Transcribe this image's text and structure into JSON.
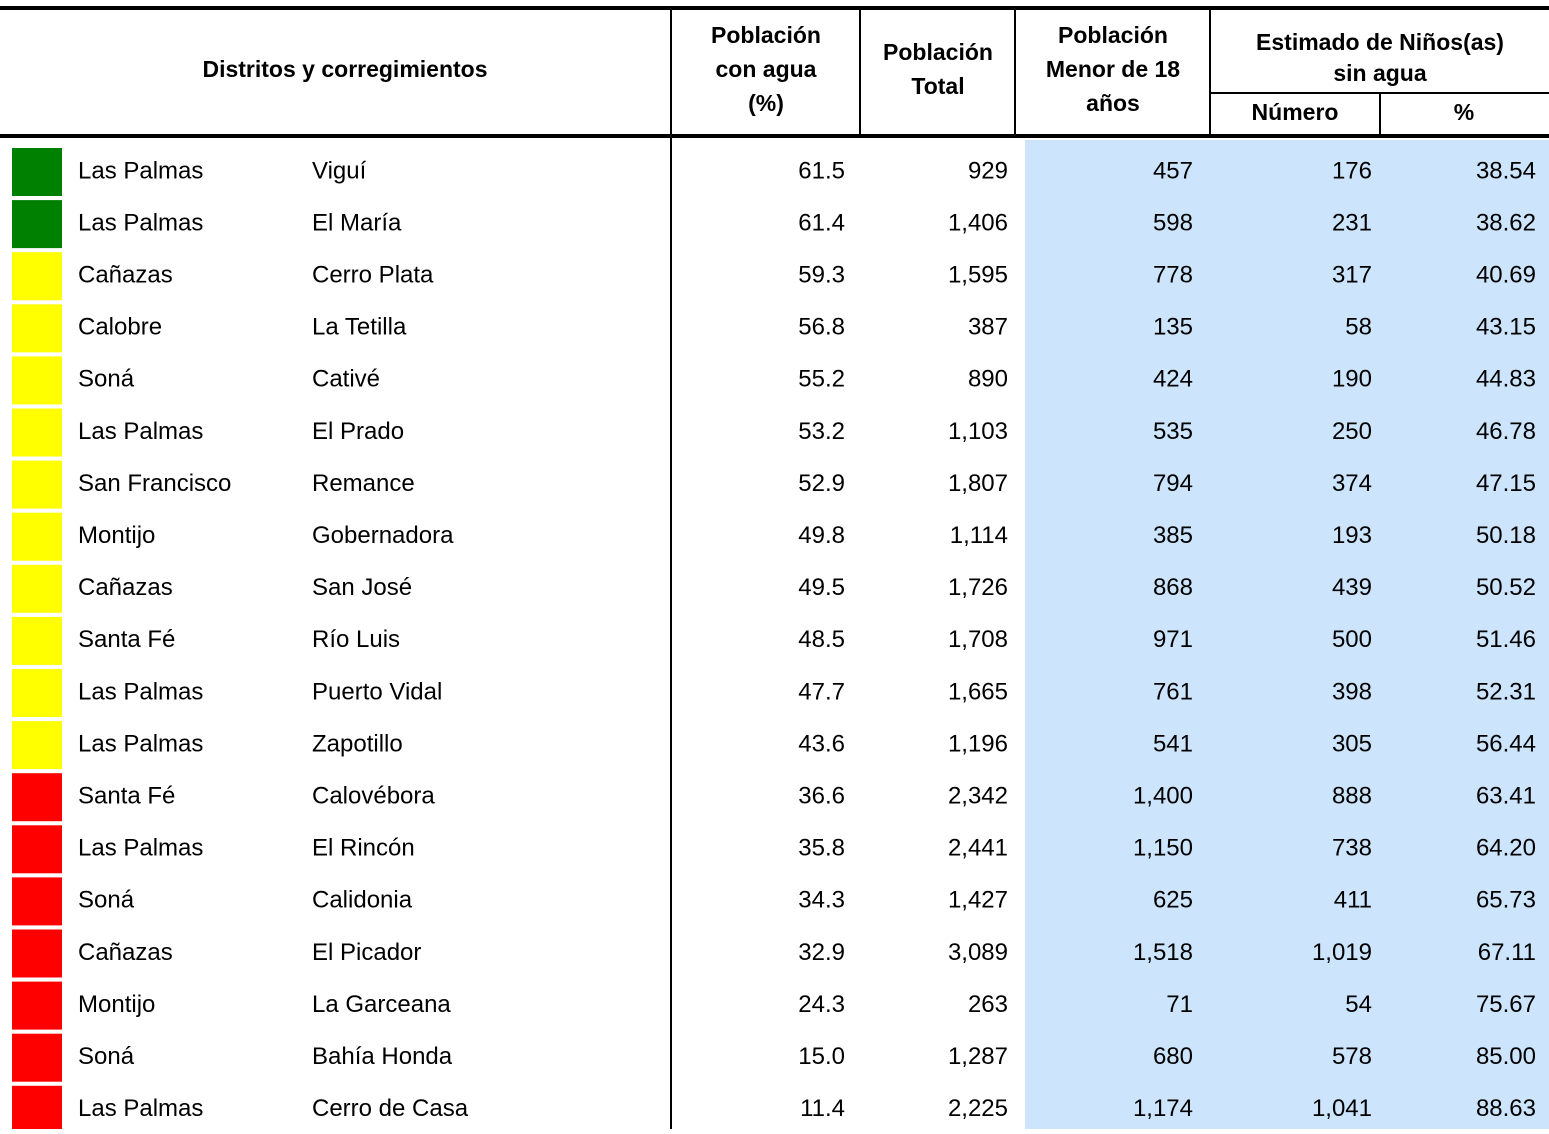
{
  "header": {
    "districts": "Distritos y corregimientos",
    "water_pct": [
      "Población",
      "con agua",
      "(%)"
    ],
    "total": [
      "Población",
      "Total"
    ],
    "under18": [
      "Población",
      "Menor de 18",
      "años"
    ],
    "estimate": [
      "Estimado de Niños(as)",
      "sin agua"
    ],
    "number": "Número",
    "pct": "%"
  },
  "table": {
    "rows": [
      {
        "color": "#008000",
        "cells": [
          "Las Palmas",
          "Viguí",
          "61.5",
          "929",
          "457",
          "176",
          "38.54"
        ]
      },
      {
        "color": "#008000",
        "cells": [
          "Las Palmas",
          "El María",
          "61.4",
          "1,406",
          "598",
          "231",
          "38.62"
        ]
      },
      {
        "color": "#ffff00",
        "cells": [
          "Cañazas",
          "Cerro Plata",
          "59.3",
          "1,595",
          "778",
          "317",
          "40.69"
        ]
      },
      {
        "color": "#ffff00",
        "cells": [
          "Calobre",
          "La Tetilla",
          "56.8",
          "387",
          "135",
          "58",
          "43.15"
        ]
      },
      {
        "color": "#ffff00",
        "cells": [
          "Soná",
          "Cativé",
          "55.2",
          "890",
          "424",
          "190",
          "44.83"
        ]
      },
      {
        "color": "#ffff00",
        "cells": [
          "Las Palmas",
          "El Prado",
          "53.2",
          "1,103",
          "535",
          "250",
          "46.78"
        ]
      },
      {
        "color": "#ffff00",
        "cells": [
          "San Francisco",
          "Remance",
          "52.9",
          "1,807",
          "794",
          "374",
          "47.15"
        ]
      },
      {
        "color": "#ffff00",
        "cells": [
          "Montijo",
          "Gobernadora",
          "49.8",
          "1,114",
          "385",
          "193",
          "50.18"
        ]
      },
      {
        "color": "#ffff00",
        "cells": [
          "Cañazas",
          "San José",
          "49.5",
          "1,726",
          "868",
          "439",
          "50.52"
        ]
      },
      {
        "color": "#ffff00",
        "cells": [
          "Santa Fé",
          "Río Luis",
          "48.5",
          "1,708",
          "971",
          "500",
          "51.46"
        ]
      },
      {
        "color": "#ffff00",
        "cells": [
          "Las Palmas",
          "Puerto Vidal",
          "47.7",
          "1,665",
          "761",
          "398",
          "52.31"
        ]
      },
      {
        "color": "#ffff00",
        "cells": [
          "Las Palmas",
          "Zapotillo",
          "43.6",
          "1,196",
          "541",
          "305",
          "56.44"
        ]
      },
      {
        "color": "#ff0000",
        "cells": [
          "Santa Fé",
          "Calovébora",
          "36.6",
          "2,342",
          "1,400",
          "888",
          "63.41"
        ]
      },
      {
        "color": "#ff0000",
        "cells": [
          "Las Palmas",
          "El Rincón",
          "35.8",
          "2,441",
          "1,150",
          "738",
          "64.20"
        ]
      },
      {
        "color": "#ff0000",
        "cells": [
          "Soná",
          "Calidonia",
          "34.3",
          "1,427",
          "625",
          "411",
          "65.73"
        ]
      },
      {
        "color": "#ff0000",
        "cells": [
          "Cañazas",
          "El Picador",
          "32.9",
          "3,089",
          "1,518",
          "1,019",
          "67.11"
        ]
      },
      {
        "color": "#ff0000",
        "cells": [
          "Montijo",
          "La Garceana",
          "24.3",
          "263",
          "71",
          "54",
          "75.67"
        ]
      },
      {
        "color": "#ff0000",
        "cells": [
          "Soná",
          "Bahía Honda",
          "15.0",
          "1,287",
          "680",
          "578",
          "85.00"
        ]
      },
      {
        "color": "#ff0000",
        "cells": [
          "Las Palmas",
          "Cerro de Casa",
          "11.4",
          "2,225",
          "1,174",
          "1,041",
          "88.63"
        ]
      }
    ]
  }
}
